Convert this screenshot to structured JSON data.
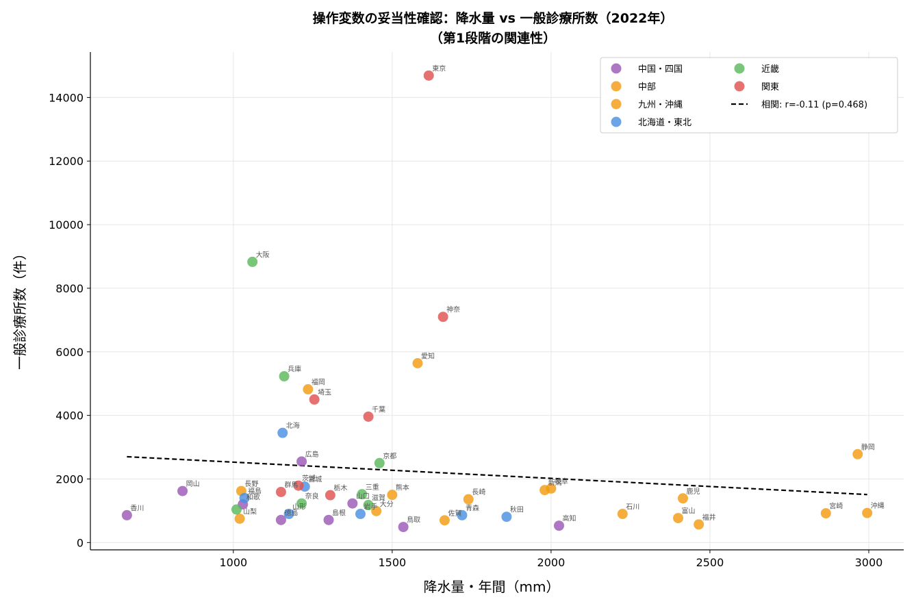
{
  "chart_data": {
    "type": "scatter",
    "title": "操作変数の妥当性確認：降水量 vs 一般診療所数（2022年）",
    "subtitle": "（第1段階の関連性）",
    "xlabel": "降水量・年間（mm）",
    "ylabel": "一般診療所数（件）",
    "xlim": [
      550,
      3110
    ],
    "ylim": [
      -230,
      15430
    ],
    "xticks": [
      1000,
      1500,
      2000,
      2500,
      3000
    ],
    "yticks": [
      0,
      2000,
      4000,
      6000,
      8000,
      10000,
      12000,
      14000
    ],
    "grid": true,
    "legend_position": "top-right",
    "series": [
      {
        "name": "中国・四国",
        "color": "#9b59b6",
        "points": [
          {
            "label": "香川",
            "x": 665,
            "y": 860
          },
          {
            "label": "岡山",
            "x": 840,
            "y": 1620
          },
          {
            "label": "和歌",
            "x": 1030,
            "y": 1200
          },
          {
            "label": "徳島",
            "x": 1150,
            "y": 710
          },
          {
            "label": "広島",
            "x": 1215,
            "y": 2550
          },
          {
            "label": "島根",
            "x": 1300,
            "y": 710
          },
          {
            "label": "山口",
            "x": 1375,
            "y": 1230
          },
          {
            "label": "鳥取",
            "x": 1535,
            "y": 490
          },
          {
            "label": "高知",
            "x": 2025,
            "y": 530
          }
        ]
      },
      {
        "name": "中部",
        "color": "#f39c12",
        "points": [
          {
            "label": "長野",
            "x": 1025,
            "y": 1620
          },
          {
            "label": "山梨",
            "x": 1020,
            "y": 750
          },
          {
            "label": "愛知",
            "x": 1580,
            "y": 5640
          },
          {
            "label": "新潟",
            "x": 1980,
            "y": 1650
          },
          {
            "label": "岐阜",
            "x": 2000,
            "y": 1700
          },
          {
            "label": "石川",
            "x": 2225,
            "y": 900
          },
          {
            "label": "富山",
            "x": 2400,
            "y": 770
          },
          {
            "label": "福井",
            "x": 2465,
            "y": 570
          },
          {
            "label": "静岡",
            "x": 2965,
            "y": 2780
          }
        ]
      },
      {
        "name": "九州・沖縄",
        "color": "#f39c12",
        "points": [
          {
            "label": "福岡",
            "x": 1235,
            "y": 4820
          },
          {
            "label": "大分",
            "x": 1450,
            "y": 990
          },
          {
            "label": "熊本",
            "x": 1500,
            "y": 1500
          },
          {
            "label": "佐賀",
            "x": 1665,
            "y": 700
          },
          {
            "label": "長崎",
            "x": 1740,
            "y": 1360
          },
          {
            "label": "鹿児",
            "x": 2415,
            "y": 1390
          },
          {
            "label": "宮崎",
            "x": 2865,
            "y": 920
          },
          {
            "label": "沖縄",
            "x": 2995,
            "y": 930
          }
        ]
      },
      {
        "name": "北海道・東北",
        "color": "#4a90e2",
        "points": [
          {
            "label": "福島",
            "x": 1035,
            "y": 1400
          },
          {
            "label": "北海",
            "x": 1155,
            "y": 3450
          },
          {
            "label": "山形",
            "x": 1175,
            "y": 900
          },
          {
            "label": "宮城",
            "x": 1225,
            "y": 1760
          },
          {
            "label": "岩手",
            "x": 1400,
            "y": 900
          },
          {
            "label": "青森",
            "x": 1720,
            "y": 860
          },
          {
            "label": "秋田",
            "x": 1860,
            "y": 810
          }
        ]
      },
      {
        "name": "近畿",
        "color": "#5cb85c",
        "points": [
          {
            "label": "大阪",
            "x": 1060,
            "y": 8830
          },
          {
            "label": "兵庫",
            "x": 1160,
            "y": 5230
          },
          {
            "label": "奈良",
            "x": 1215,
            "y": 1230
          },
          {
            "label": "三重",
            "x": 1405,
            "y": 1520
          },
          {
            "label": "滋賀",
            "x": 1425,
            "y": 1180
          },
          {
            "label": "京都",
            "x": 1460,
            "y": 2500
          },
          {
            "label": "",
            "x": 1010,
            "y": 1040
          }
        ]
      },
      {
        "name": "関東",
        "color": "#e05252",
        "points": [
          {
            "label": "群馬",
            "x": 1150,
            "y": 1590
          },
          {
            "label": "茨城",
            "x": 1205,
            "y": 1790
          },
          {
            "label": "埼玉",
            "x": 1255,
            "y": 4500
          },
          {
            "label": "栃木",
            "x": 1305,
            "y": 1490
          },
          {
            "label": "千葉",
            "x": 1425,
            "y": 3960
          },
          {
            "label": "東京",
            "x": 1615,
            "y": 14690
          },
          {
            "label": "神奈",
            "x": 1660,
            "y": 7100
          }
        ]
      }
    ],
    "trendline": {
      "name": "相関: r=-0.11 (p=0.468)",
      "style": "dashed",
      "color": "#000000",
      "x": [
        665,
        2995
      ],
      "y": [
        2700,
        1510
      ]
    }
  }
}
